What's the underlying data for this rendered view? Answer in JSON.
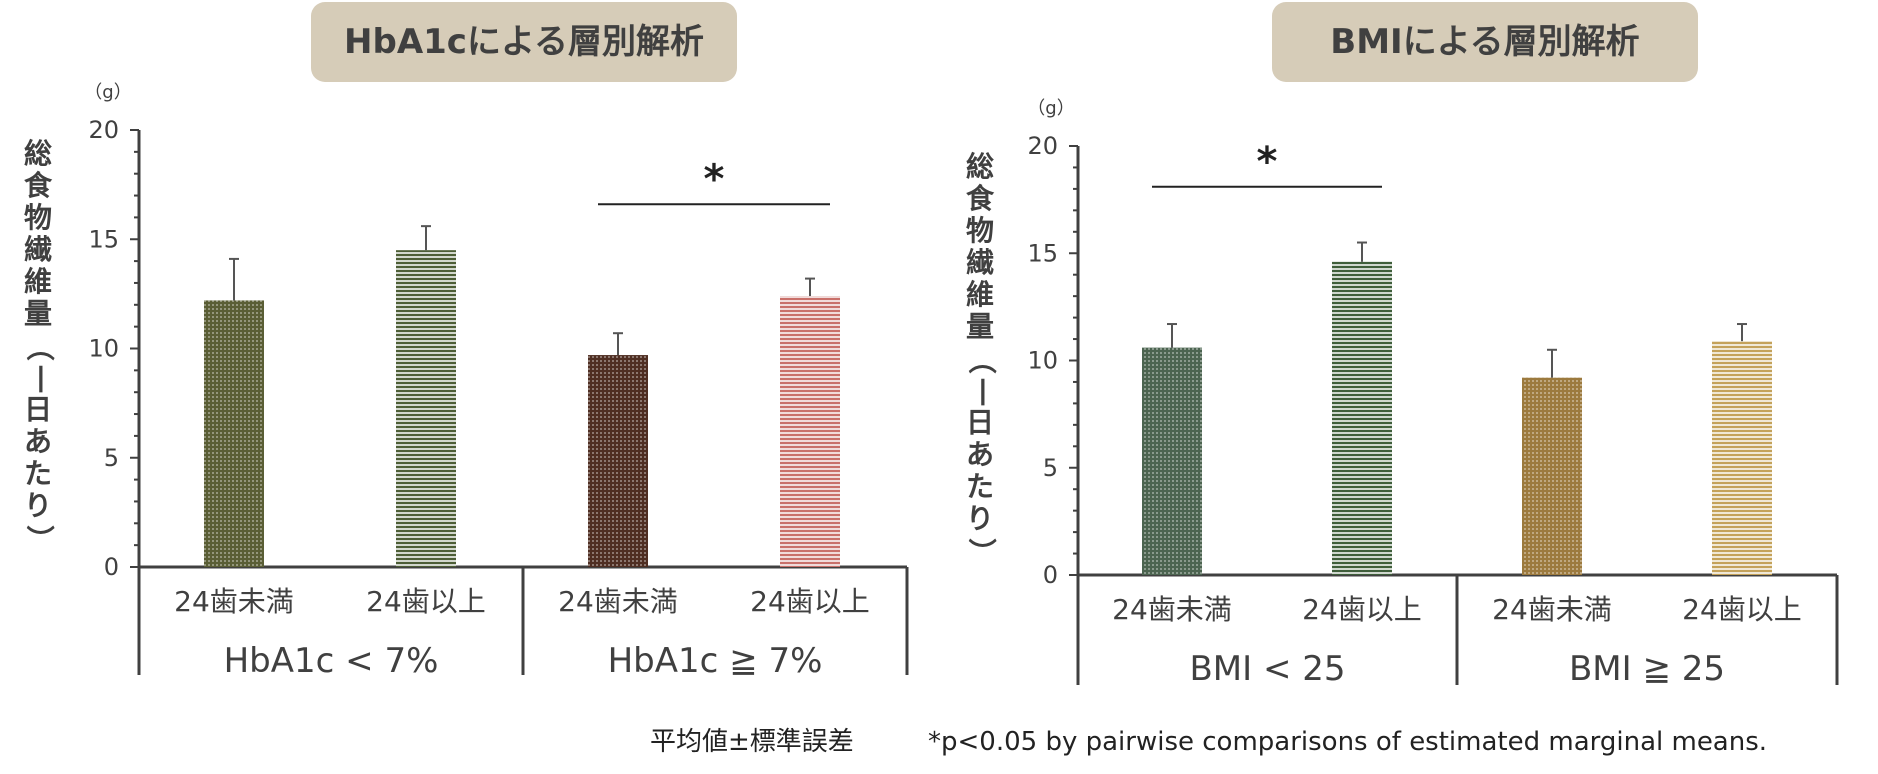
{
  "footnote_left": "平均値±標準誤差",
  "footnote_right": "*p<0.05 by pairwise comparisons of estimated marginal means.",
  "chart_data": [
    {
      "type": "bar",
      "title": "HbA1cによる層別解析",
      "ylabel": "総食物繊維量（一日あたり）",
      "unit": "（g）",
      "ylim": [
        0,
        20
      ],
      "yticks": [
        0,
        5,
        10,
        15,
        20
      ],
      "categories": [
        "24歯未満",
        "24歯以上",
        "24歯未満",
        "24歯以上"
      ],
      "groups": [
        "HbA1c < 7%",
        "HbA1c ≧ 7%"
      ],
      "values": [
        12.2,
        14.5,
        9.7,
        12.4
      ],
      "errors": [
        1.9,
        1.1,
        1.0,
        0.8
      ],
      "colors": [
        "#5a5e35",
        "#4d5e36",
        "#4f2e22",
        "#c9706a"
      ],
      "significance": [
        {
          "from": 2,
          "to": 3,
          "label": "*",
          "y": 16.6
        }
      ],
      "grid": false,
      "legend": "none"
    },
    {
      "type": "bar",
      "title": "BMIによる層別解析",
      "ylabel": "総食物繊維量（一日あたり）",
      "unit": "（g）",
      "ylim": [
        0,
        20
      ],
      "yticks": [
        0,
        5,
        10,
        15,
        20
      ],
      "categories": [
        "24歯未満",
        "24歯以上",
        "24歯未満",
        "24歯以上"
      ],
      "groups": [
        "BMI < 25",
        "BMI ≧ 25"
      ],
      "values": [
        10.6,
        14.6,
        9.2,
        10.9
      ],
      "errors": [
        1.1,
        0.9,
        1.3,
        0.8
      ],
      "colors": [
        "#4c6450",
        "#3f5e3a",
        "#9c7a3e",
        "#c4a25a"
      ],
      "significance": [
        {
          "from": 0,
          "to": 1,
          "label": "*",
          "y": 18.1
        }
      ],
      "grid": false,
      "legend": "none"
    }
  ]
}
